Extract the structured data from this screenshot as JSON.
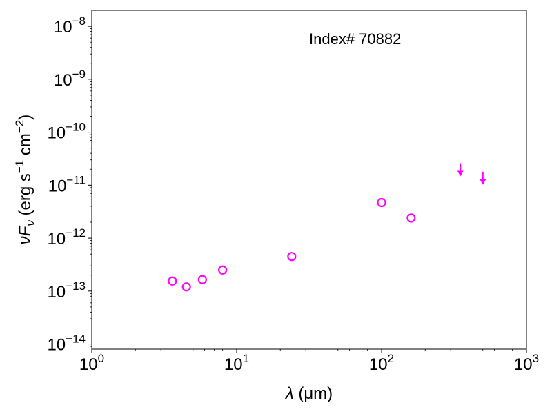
{
  "chart_data": {
    "type": "scatter",
    "annotation": "Index# 70882",
    "x_axis": {
      "scale": "log",
      "range": [
        1,
        1000
      ],
      "ticks": [
        1,
        10,
        100,
        1000
      ],
      "tick_labels": [
        {
          "base": "10",
          "exp": "0"
        },
        {
          "base": "10",
          "exp": "1"
        },
        {
          "base": "10",
          "exp": "2"
        },
        {
          "base": "10",
          "exp": "3"
        }
      ],
      "label": {
        "symbol": "λ",
        "unit": " (μm)"
      }
    },
    "y_axis": {
      "scale": "log",
      "range": [
        8e-15,
        2e-08
      ],
      "ticks": [
        1e-14,
        1e-13,
        1e-12,
        1e-11,
        1e-10,
        1e-09,
        1e-08
      ],
      "tick_labels": [
        {
          "base": "10",
          "exp": "−14"
        },
        {
          "base": "10",
          "exp": "−13"
        },
        {
          "base": "10",
          "exp": "−12"
        },
        {
          "base": "10",
          "exp": "−11"
        },
        {
          "base": "10",
          "exp": "−10"
        },
        {
          "base": "10",
          "exp": "−9"
        },
        {
          "base": "10",
          "exp": "−8"
        }
      ],
      "label": {
        "nu": "ν",
        "F": "F",
        "sub": "ν",
        "unit_open": " (erg s",
        "exp1": "−1",
        "mid": " cm",
        "exp2": "−2",
        "close": ")"
      }
    },
    "marker_color": "#ff00ff",
    "series": [
      {
        "marker": "open-circle",
        "points": [
          {
            "x": 3.6,
            "y": 1.55e-13
          },
          {
            "x": 4.5,
            "y": 1.2e-13
          },
          {
            "x": 5.8,
            "y": 1.65e-13
          },
          {
            "x": 8.0,
            "y": 2.5e-13
          },
          {
            "x": 24,
            "y": 4.5e-13
          },
          {
            "x": 100,
            "y": 4.7e-12
          },
          {
            "x": 160,
            "y": 2.4e-12
          }
        ]
      },
      {
        "marker": "upper-limit-arrow",
        "points": [
          {
            "x": 350,
            "y": 2.6e-11
          },
          {
            "x": 500,
            "y": 1.8e-11
          }
        ]
      }
    ]
  }
}
